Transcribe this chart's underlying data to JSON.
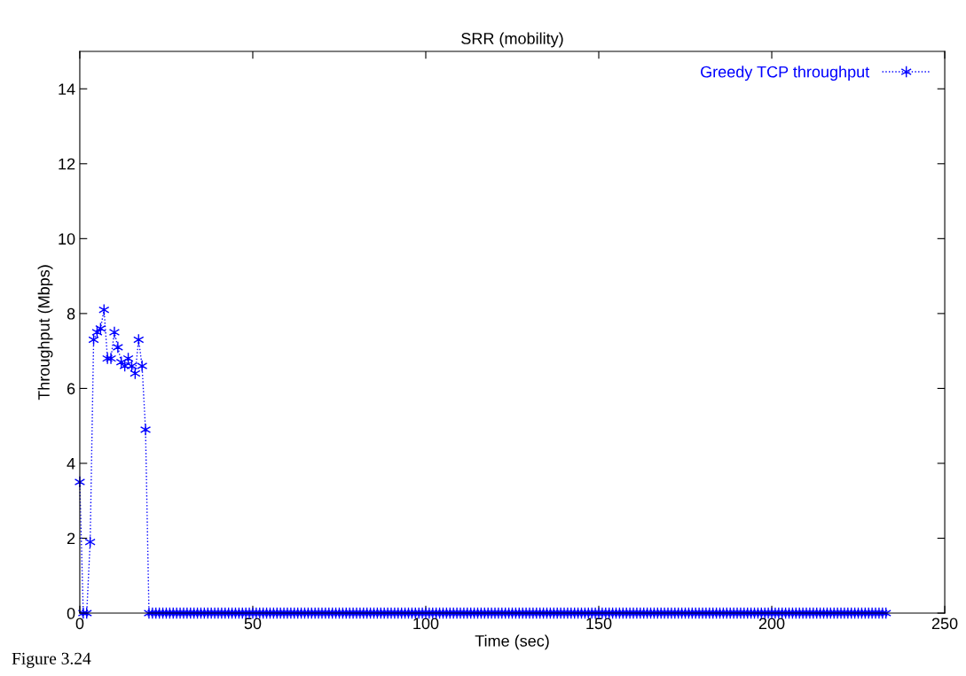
{
  "chart_data": {
    "type": "line",
    "title": "SRR (mobility)",
    "xlabel": "Time (sec)",
    "ylabel": "Throughput (Mbps)",
    "xlim": [
      0,
      250
    ],
    "xticks": [
      0,
      50,
      100,
      150,
      200,
      250
    ],
    "ylim": [
      0,
      15
    ],
    "yticks": [
      0,
      2,
      4,
      6,
      8,
      10,
      12,
      14
    ],
    "grid": false,
    "legend": "top right",
    "marker": "cross",
    "line_style": "dotted",
    "annotations": [
      "Figure 3.24"
    ],
    "series": [
      {
        "name": "Greedy TCP throughput",
        "color": "#0000ff",
        "x": [
          0,
          1,
          2,
          3,
          4,
          5,
          6,
          7,
          8,
          9,
          10,
          11,
          12,
          13,
          14,
          15,
          16,
          17,
          18,
          19,
          20,
          21,
          22,
          23,
          24,
          25,
          26,
          27,
          28,
          29,
          30,
          31,
          32,
          33,
          34,
          35,
          36,
          37,
          38,
          39,
          40,
          41,
          42,
          43,
          44,
          45,
          46,
          47,
          48,
          49,
          50,
          51,
          52,
          53,
          54,
          55,
          56,
          57,
          58,
          59,
          60,
          61,
          62,
          63,
          64,
          65,
          66,
          67,
          68,
          69,
          70,
          71,
          72,
          73,
          74,
          75,
          76,
          77,
          78,
          79,
          80,
          81,
          82,
          83,
          84,
          85,
          86,
          87,
          88,
          89,
          90,
          91,
          92,
          93,
          94,
          95,
          96,
          97,
          98,
          99,
          100,
          101,
          102,
          103,
          104,
          105,
          106,
          107,
          108,
          109,
          110,
          111,
          112,
          113,
          114,
          115,
          116,
          117,
          118,
          119,
          120,
          121,
          122,
          123,
          124,
          125,
          126,
          127,
          128,
          129,
          130,
          131,
          132,
          133,
          134,
          135,
          136,
          137,
          138,
          139,
          140,
          141,
          142,
          143,
          144,
          145,
          146,
          147,
          148,
          149,
          150,
          151,
          152,
          153,
          154,
          155,
          156,
          157,
          158,
          159,
          160,
          161,
          162,
          163,
          164,
          165,
          166,
          167,
          168,
          169,
          170,
          171,
          172,
          173,
          174,
          175,
          176,
          177,
          178,
          179,
          180,
          181,
          182,
          183,
          184,
          185,
          186,
          187,
          188,
          189,
          190,
          191,
          192,
          193,
          194,
          195,
          196,
          197,
          198,
          199,
          200,
          201,
          202,
          203,
          204,
          205,
          206,
          207,
          208,
          209,
          210,
          211,
          212,
          213,
          214,
          215,
          216,
          217,
          218,
          219,
          220,
          221,
          222,
          223,
          224,
          225,
          226,
          227,
          228,
          229,
          230,
          231,
          232,
          233
        ],
        "values": [
          3.5,
          0,
          0,
          1.9,
          7.3,
          7.5,
          7.6,
          8.1,
          6.8,
          6.8,
          7.5,
          7.1,
          6.7,
          6.6,
          6.8,
          6.6,
          6.4,
          7.3,
          6.6,
          4.9,
          0,
          0,
          0,
          0,
          0,
          0,
          0,
          0,
          0,
          0,
          0,
          0,
          0,
          0,
          0,
          0,
          0,
          0,
          0,
          0,
          0,
          0,
          0,
          0,
          0,
          0,
          0,
          0,
          0,
          0,
          0,
          0,
          0,
          0,
          0,
          0,
          0,
          0,
          0,
          0,
          0,
          0,
          0,
          0,
          0,
          0,
          0,
          0,
          0,
          0,
          0,
          0,
          0,
          0,
          0,
          0,
          0,
          0,
          0,
          0,
          0,
          0,
          0,
          0,
          0,
          0,
          0,
          0,
          0,
          0,
          0,
          0,
          0,
          0,
          0,
          0,
          0,
          0,
          0,
          0,
          0,
          0,
          0,
          0,
          0,
          0,
          0,
          0,
          0,
          0,
          0,
          0,
          0,
          0,
          0,
          0,
          0,
          0,
          0,
          0,
          0,
          0,
          0,
          0,
          0,
          0,
          0,
          0,
          0,
          0,
          0,
          0,
          0,
          0,
          0,
          0,
          0,
          0,
          0,
          0,
          0,
          0,
          0,
          0,
          0,
          0,
          0,
          0,
          0,
          0,
          0,
          0,
          0,
          0,
          0,
          0,
          0,
          0,
          0,
          0,
          0,
          0,
          0,
          0,
          0,
          0,
          0,
          0,
          0,
          0,
          0,
          0,
          0,
          0,
          0,
          0,
          0,
          0,
          0,
          0,
          0,
          0,
          0,
          0,
          0,
          0,
          0,
          0,
          0,
          0,
          0,
          0,
          0,
          0,
          0,
          0,
          0,
          0,
          0,
          0,
          0,
          0,
          0,
          0,
          0,
          0,
          0,
          0,
          0,
          0,
          0,
          0,
          0,
          0,
          0,
          0,
          0,
          0,
          0,
          0,
          0,
          0,
          0,
          0,
          0,
          0,
          0,
          0,
          0,
          0,
          0,
          0,
          0,
          0
        ]
      }
    ]
  }
}
